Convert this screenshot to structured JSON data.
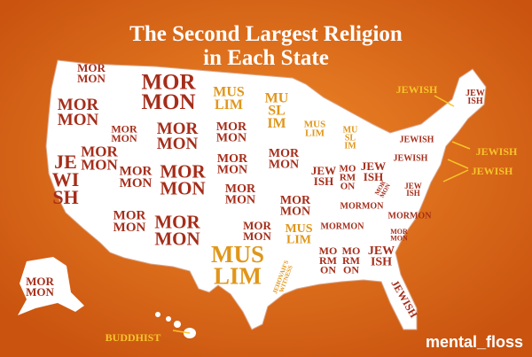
{
  "title": [
    "The Second Largest Religion",
    "in Each State"
  ],
  "colors": {
    "mormon": "#a52d1a",
    "muslim": "#e0961a",
    "callout": "#f7c52a"
  },
  "labels": [
    {
      "lines": [
        "MOR",
        "MON"
      ],
      "color": "mormon"
    },
    {
      "lines": [
        "MOR",
        "MON"
      ],
      "color": "mormon"
    },
    {
      "lines": [
        "MOR",
        "MON"
      ],
      "color": "mormon"
    },
    {
      "lines": [
        "MOR",
        "MON"
      ],
      "color": "mormon"
    },
    {
      "lines": [
        "MOR",
        "MON"
      ],
      "color": "mormon"
    },
    {
      "lines": [
        "MOR",
        "MON"
      ],
      "color": "mormon"
    },
    {
      "lines": [
        "JE",
        "WI",
        "SH"
      ],
      "color": "mormon"
    },
    {
      "lines": [
        "MOR",
        "MON"
      ],
      "color": "mormon"
    },
    {
      "lines": [
        "MOR",
        "MON"
      ],
      "color": "mormon"
    },
    {
      "lines": [
        "MOR",
        "MON"
      ],
      "color": "mormon"
    },
    {
      "lines": [
        "MOR",
        "MON"
      ],
      "color": "mormon"
    },
    {
      "lines": [
        "MUS",
        "LIM"
      ],
      "color": "muslim"
    },
    {
      "lines": [
        "MOR",
        "MON"
      ],
      "color": "mormon"
    },
    {
      "lines": [
        "MOR",
        "MON"
      ],
      "color": "mormon"
    },
    {
      "lines": [
        "MOR",
        "MON"
      ],
      "color": "mormon"
    },
    {
      "lines": [
        "MOR",
        "MON"
      ],
      "color": "mormon"
    },
    {
      "lines": [
        "MUS",
        "LIM"
      ],
      "color": "muslim"
    },
    {
      "lines": [
        "MU",
        "SL",
        "IM"
      ],
      "color": "muslim"
    },
    {
      "lines": [
        "MOR",
        "MON"
      ],
      "color": "mormon"
    },
    {
      "lines": [
        "MOR",
        "MON"
      ],
      "color": "mormon"
    },
    {
      "lines": [
        "MUS",
        "LIM"
      ],
      "color": "muslim"
    },
    {
      "lines": [
        "JEHOVAH'S",
        "WITNESS"
      ],
      "color": "muslim"
    },
    {
      "lines": [
        "MUS",
        "LIM"
      ],
      "color": "muslim"
    },
    {
      "lines": [
        "MU",
        "SL",
        "IM"
      ],
      "color": "muslim"
    },
    {
      "lines": [
        "JEW",
        "ISH"
      ],
      "color": "mormon"
    },
    {
      "lines": [
        "MO",
        "RM",
        "ON"
      ],
      "color": "mormon"
    },
    {
      "lines": [
        "JEW",
        "ISH"
      ],
      "color": "mormon"
    },
    {
      "lines": [
        "MOR",
        "MON"
      ],
      "color": "mormon"
    },
    {
      "lines": [
        "MORMON"
      ],
      "color": "mormon"
    },
    {
      "lines": [
        "MORMON"
      ],
      "color": "mormon"
    },
    {
      "lines": [
        "MORMON"
      ],
      "color": "mormon"
    },
    {
      "lines": [
        "MOR",
        "MON"
      ],
      "color": "mormon"
    },
    {
      "lines": [
        "MO",
        "RM",
        "ON"
      ],
      "color": "mormon"
    },
    {
      "lines": [
        "MO",
        "RM",
        "ON"
      ],
      "color": "mormon"
    },
    {
      "lines": [
        "JEW",
        "ISH"
      ],
      "color": "mormon"
    },
    {
      "lines": [
        "JEWISH"
      ],
      "color": "mormon"
    },
    {
      "lines": [
        "JEW",
        "ISH"
      ],
      "color": "mormon"
    },
    {
      "lines": [
        "JEWISH"
      ],
      "color": "mormon"
    },
    {
      "lines": [
        "JEWISH"
      ],
      "color": "mormon"
    },
    {
      "lines": [
        "JEW",
        "ISH"
      ],
      "color": "mormon"
    },
    {
      "lines": [
        "MOR",
        "MON"
      ],
      "color": "mormon"
    }
  ],
  "callouts": [
    "JEWISH",
    "JEWISH",
    "JEWISH",
    "BUDDHIST"
  ],
  "logo": "mental_floss"
}
